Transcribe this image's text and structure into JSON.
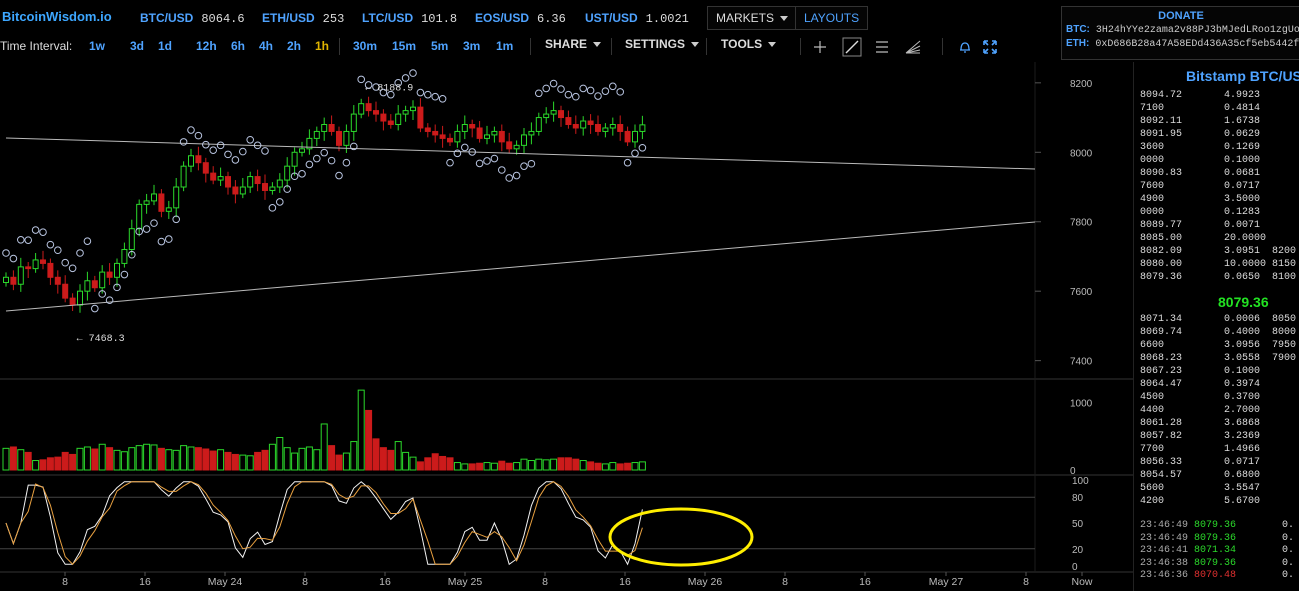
{
  "header": {
    "logo": "BitcoinWisdom.io",
    "tickers": [
      {
        "symbol": "BTC/USD",
        "price": "8064.6"
      },
      {
        "symbol": "ETH/USD",
        "price": "253"
      },
      {
        "symbol": "LTC/USD",
        "price": "101.8"
      },
      {
        "symbol": "EOS/USD",
        "price": "6.36"
      },
      {
        "symbol": "UST/USD",
        "price": "1.0021"
      }
    ],
    "markets_label": "MARKETS",
    "layouts_label": "LAYOUTS"
  },
  "donate": {
    "title": "DONATE",
    "btc_label": "BTC:",
    "btc_address": "3H24hYYe2zama2v88PJ3bMJedLRoo1zgUo",
    "eth_label": "ETH:",
    "eth_address": "0xD686B28a47A58EDd436A35cf5eb5442f"
  },
  "toolbar": {
    "label": "Time Interval:",
    "intervals": [
      "1w",
      "3d",
      "1d",
      "12h",
      "6h",
      "4h",
      "2h",
      "1h",
      "30m",
      "15m",
      "5m",
      "3m",
      "1m"
    ],
    "active_interval": "1h",
    "share_label": "SHARE",
    "settings_label": "SETTINGS",
    "tools_label": "TOOLS"
  },
  "colors": {
    "up": "#2bd92b",
    "down": "#cc1b1b",
    "accent": "#4fa3ff",
    "last_price": "#22e222",
    "highlight": "#ffee00"
  },
  "chart_data": {
    "type": "candlestick",
    "price_axis_ticks": [
      "8200",
      "8000",
      "7800",
      "7600",
      "7400"
    ],
    "price_range": [
      7350,
      8260
    ],
    "volume_axis_ticks": [
      "1000",
      "0"
    ],
    "stoch_axis_ticks": [
      "100",
      "80",
      "50",
      "20",
      "0"
    ],
    "x_labels": [
      "8",
      "16",
      "May 24",
      "8",
      "16",
      "May 25",
      "8",
      "16",
      "May 26",
      "8",
      "16",
      "May 27",
      "8",
      "Now"
    ],
    "annotations": {
      "high": "← 8188.9",
      "low": "← 7468.3"
    },
    "closes": [
      7640,
      7620,
      7670,
      7665,
      7690,
      7680,
      7640,
      7620,
      7580,
      7560,
      7600,
      7630,
      7610,
      7655,
      7640,
      7680,
      7720,
      7780,
      7850,
      7860,
      7880,
      7830,
      7840,
      7900,
      7960,
      7990,
      7970,
      7940,
      7920,
      7930,
      7900,
      7880,
      7900,
      7930,
      7910,
      7890,
      7900,
      7920,
      7960,
      8000,
      8010,
      8040,
      8060,
      8080,
      8060,
      8020,
      8060,
      8110,
      8140,
      8120,
      8110,
      8090,
      8080,
      8110,
      8120,
      8130,
      8070,
      8060,
      8050,
      8040,
      8030,
      8060,
      8080,
      8070,
      8040,
      8050,
      8060,
      8030,
      8010,
      8020,
      8050,
      8060,
      8100,
      8110,
      8120,
      8100,
      8080,
      8070,
      8090,
      8080,
      8060,
      8070,
      8080,
      8060,
      8030,
      8060,
      8079
    ],
    "volumes": [
      320,
      340,
      300,
      260,
      140,
      150,
      180,
      190,
      260,
      230,
      320,
      340,
      310,
      380,
      330,
      290,
      270,
      330,
      360,
      380,
      370,
      320,
      300,
      290,
      360,
      340,
      330,
      310,
      280,
      300,
      260,
      230,
      220,
      210,
      260,
      290,
      380,
      480,
      330,
      250,
      320,
      340,
      300,
      680,
      360,
      220,
      250,
      420,
      1180,
      880,
      460,
      330,
      290,
      420,
      260,
      190,
      120,
      180,
      240,
      200,
      180,
      110,
      90,
      90,
      100,
      110,
      100,
      130,
      100,
      110,
      160,
      140,
      160,
      150,
      160,
      180,
      180,
      160,
      140,
      120,
      100,
      90,
      110,
      90,
      100,
      110,
      120
    ]
  },
  "orderbook": {
    "title": "Bitstamp BTC/USD",
    "asks": [
      {
        "price": "8094.72",
        "amount": "4.9923",
        "sum": ""
      },
      {
        "price": "7100",
        "amount": "0.4814",
        "sum": ""
      },
      {
        "price": "8092.11",
        "amount": "1.6738",
        "sum": ""
      },
      {
        "price": "8091.95",
        "amount": "0.0629",
        "sum": ""
      },
      {
        "price": "3600",
        "amount": "0.1269",
        "sum": ""
      },
      {
        "price": "0000",
        "amount": "0.1000",
        "sum": ""
      },
      {
        "price": "8090.83",
        "amount": "0.0681",
        "sum": ""
      },
      {
        "price": "7600",
        "amount": "0.0717",
        "sum": ""
      },
      {
        "price": "4900",
        "amount": "3.5000",
        "sum": ""
      },
      {
        "price": "0000",
        "amount": "0.1283",
        "sum": ""
      },
      {
        "price": "8089.77",
        "amount": "0.0071",
        "sum": ""
      },
      {
        "price": "8085.00",
        "amount": "20.0000",
        "sum": ""
      },
      {
        "price": "8082.09",
        "amount": "3.0951",
        "sum": "8200"
      },
      {
        "price": "8080.00",
        "amount": "10.0000",
        "sum": "8150"
      },
      {
        "price": "8079.36",
        "amount": "0.0650",
        "sum": "8100"
      }
    ],
    "last_price": "8079.36",
    "bids": [
      {
        "price": "8071.34",
        "amount": "0.0006",
        "sum": "8050"
      },
      {
        "price": "8069.74",
        "amount": "0.4000",
        "sum": "8000"
      },
      {
        "price": "6600",
        "amount": "3.0956",
        "sum": "7950"
      },
      {
        "price": "8068.23",
        "amount": "3.0558",
        "sum": "7900"
      },
      {
        "price": "8067.23",
        "amount": "0.1000",
        "sum": ""
      },
      {
        "price": "8064.47",
        "amount": "0.3974",
        "sum": ""
      },
      {
        "price": "4500",
        "amount": "0.3700",
        "sum": ""
      },
      {
        "price": "4400",
        "amount": "2.7000",
        "sum": ""
      },
      {
        "price": "8061.28",
        "amount": "3.6868",
        "sum": ""
      },
      {
        "price": "8057.82",
        "amount": "3.2369",
        "sum": ""
      },
      {
        "price": "7700",
        "amount": "1.4966",
        "sum": ""
      },
      {
        "price": "8056.33",
        "amount": "0.0717",
        "sum": ""
      },
      {
        "price": "8054.57",
        "amount": "0.6800",
        "sum": ""
      },
      {
        "price": "5600",
        "amount": "3.5547",
        "sum": ""
      },
      {
        "price": "4200",
        "amount": "5.6700",
        "sum": ""
      }
    ],
    "trades": [
      {
        "time": "23:46:49",
        "price": "8079.36",
        "amount": "0.",
        "side": "buy"
      },
      {
        "time": "23:46:49",
        "price": "8079.36",
        "amount": "0.",
        "side": "buy"
      },
      {
        "time": "23:46:41",
        "price": "8071.34",
        "amount": "0.",
        "side": "buy"
      },
      {
        "time": "23:46:38",
        "price": "8079.36",
        "amount": "0.",
        "side": "buy"
      },
      {
        "time": "23:46:36",
        "price": "8070.48",
        "amount": "0.",
        "side": "sell"
      }
    ]
  }
}
